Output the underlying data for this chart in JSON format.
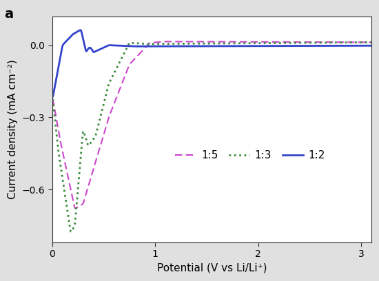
{
  "title_label": "a",
  "xlabel": "Potential (V vs Li/Li⁺)",
  "ylabel": "Current density (mA cm⁻²)",
  "xlim": [
    0,
    3.1
  ],
  "ylim": [
    -0.82,
    0.12
  ],
  "yticks": [
    0.0,
    -0.3,
    -0.6
  ],
  "xticks": [
    0,
    1,
    2,
    3
  ],
  "outer_bg_color": "#e0e0e0",
  "plot_bg_color": "#ffffff",
  "colors": {
    "1:5": "#cc44cc",
    "1:3": "#3a8a3a",
    "1:2": "#3344cc"
  },
  "legend_labels": [
    "1:5",
    "1:3",
    "1:2"
  ],
  "legend_styles": [
    "dashed",
    "dotted",
    "solid"
  ]
}
